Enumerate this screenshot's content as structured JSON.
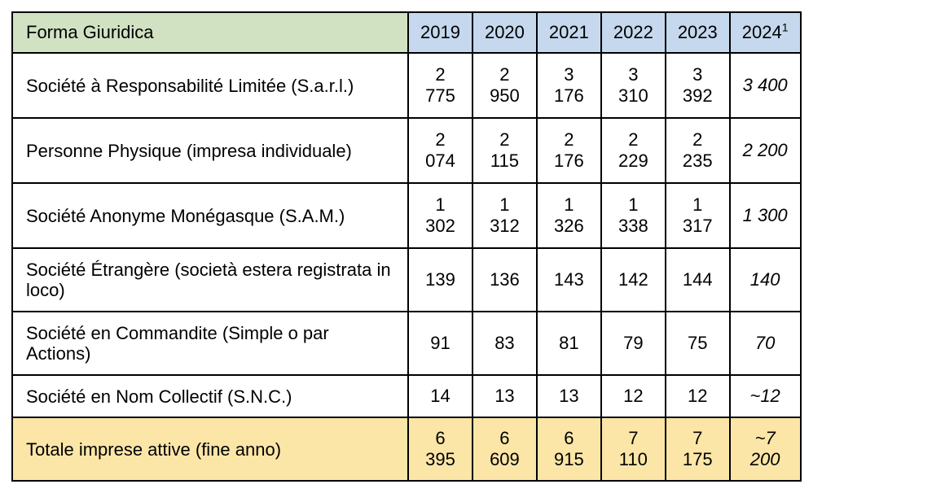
{
  "header": {
    "label": "Forma Giuridica",
    "years": [
      "2019",
      "2020",
      "2021",
      "2022",
      "2023",
      "2024"
    ],
    "last_year_footnote": "1"
  },
  "rows": [
    {
      "label": "Société à Responsabilité Limitée (S.a.r.l.)",
      "values": [
        "2 775",
        "2 950",
        "3 176",
        "3 310",
        "3 392",
        "3 400"
      ]
    },
    {
      "label": "Personne Physique (impresa individuale)",
      "values": [
        "2 074",
        "2 115",
        "2 176",
        "2 229",
        "2 235",
        "2 200"
      ]
    },
    {
      "label": "Société Anonyme Monégasque (S.A.M.)",
      "values": [
        "1 302",
        "1 312",
        "1 326",
        "1 338",
        "1 317",
        "1 300"
      ]
    },
    {
      "label": "Société Étrangère (società estera registrata in loco)",
      "values": [
        "139",
        "136",
        "143",
        "142",
        "144",
        "140"
      ]
    },
    {
      "label": "Société en Commandite (Simple o par Actions)",
      "values": [
        "91",
        "83",
        "81",
        "79",
        "75",
        "70"
      ]
    },
    {
      "label": "Société en Nom Collectif (S.N.C.)",
      "values": [
        "14",
        "13",
        "13",
        "12",
        "12",
        "~12"
      ]
    }
  ],
  "total": {
    "label": "Totale imprese attive (fine anno)",
    "values": [
      "6 395",
      "6 609",
      "6 915",
      "7 110",
      "7 175",
      "~7 200"
    ]
  },
  "colors": {
    "header_label_bg": "#d0e2c2",
    "header_year_bg": "#c5d8ee",
    "total_row_bg": "#fbe6a8"
  }
}
